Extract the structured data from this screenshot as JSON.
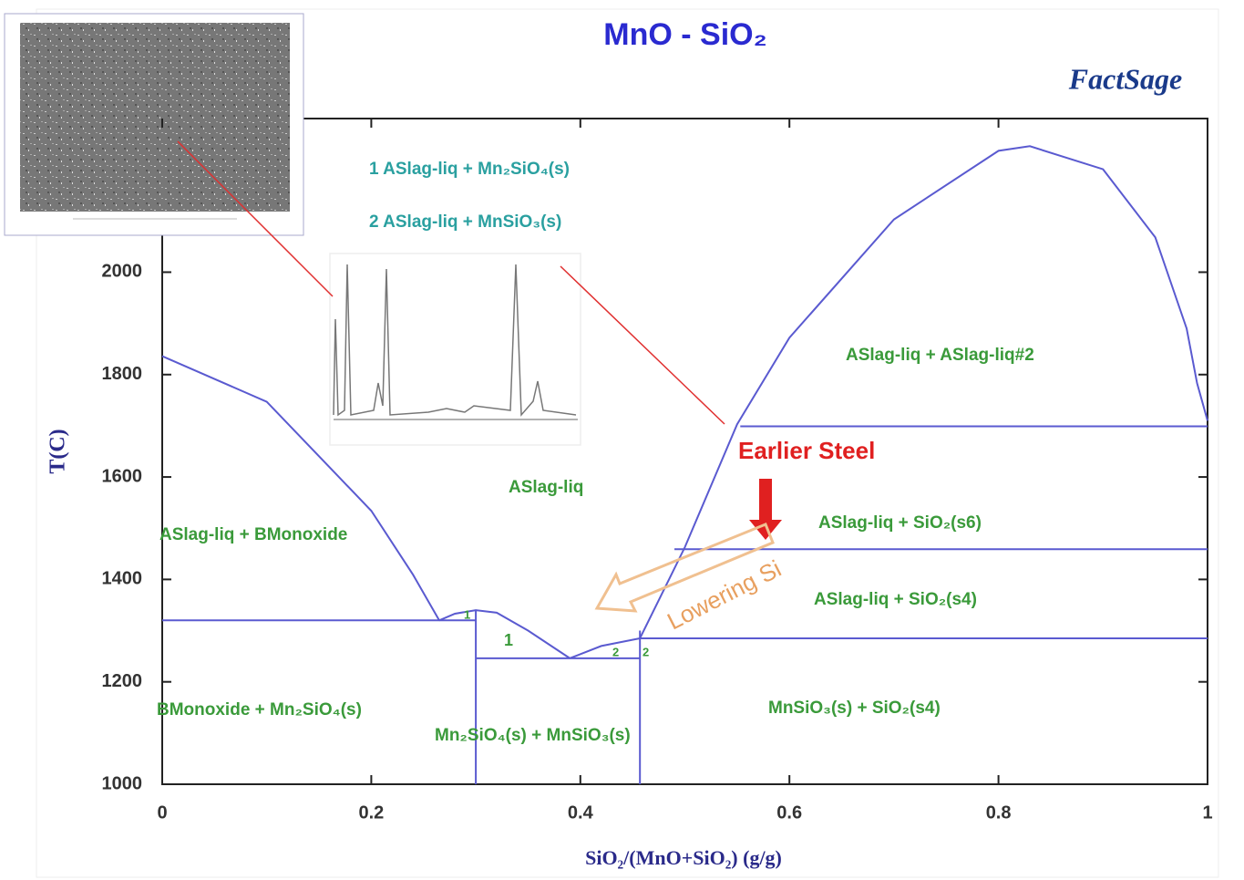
{
  "chart_data": {
    "type": "line",
    "title": "MnO - SiO₂",
    "logo": "FactSage",
    "x_label": "SiO₂/(MnO+SiO₂) (g/g)",
    "y_label": "T(C)",
    "xlim": [
      0,
      1
    ],
    "ylim": [
      1000,
      2300
    ],
    "xticks": [
      0,
      0.2,
      0.4,
      0.6,
      0.8,
      1
    ],
    "yticks": [
      1000,
      1200,
      1400,
      1600,
      1800,
      2000
    ],
    "series": [
      {
        "color": "#5a5ad0",
        "x": [
          0,
          0.1,
          0.2,
          0.24,
          0.265
        ],
        "values": [
          1836,
          1747,
          1534,
          1409,
          1320
        ]
      },
      {
        "color": "#5a5ad0",
        "x": [
          0.265,
          0.28,
          0.3,
          0.32,
          0.35,
          0.39
        ],
        "values": [
          1320,
          1333,
          1340,
          1335,
          1300,
          1246
        ]
      },
      {
        "color": "#5a5ad0",
        "x": [
          0.39,
          0.42,
          0.457,
          0.48,
          0.5,
          0.55,
          0.6,
          0.7,
          0.8,
          0.83,
          0.9,
          0.95,
          0.98,
          0.99,
          1
        ],
        "values": [
          1246,
          1270,
          1285,
          1380,
          1463,
          1703,
          1872,
          2103,
          2237,
          2246,
          2201,
          2068,
          1890,
          1783,
          1710
        ]
      },
      {
        "color": "#5a5ad0",
        "x": [
          0,
          0.3
        ],
        "values": [
          1320,
          1320
        ]
      },
      {
        "color": "#5a5ad0",
        "x": [
          0.3,
          0.457
        ],
        "values": [
          1246,
          1246
        ]
      },
      {
        "color": "#5a5ad0",
        "x": [
          0.457,
          1
        ],
        "values": [
          1285,
          1285
        ]
      },
      {
        "color": "#5a5ad0",
        "x": [
          0.49,
          1
        ],
        "values": [
          1459,
          1459
        ]
      },
      {
        "color": "#5a5ad0",
        "x": [
          0.553,
          1
        ],
        "values": [
          1699,
          1699
        ]
      },
      {
        "color": "#5a5ad0",
        "x": [
          0.3,
          0.3
        ],
        "values": [
          1000,
          1340
        ]
      },
      {
        "color": "#5a5ad0",
        "x": [
          0.457,
          0.457
        ],
        "values": [
          1000,
          1300
        ]
      }
    ],
    "phase_key": [
      "1  ASlag-liq + Mn₂SiO₄(s)",
      "2  ASlag-liq + MnSiO₃(s)"
    ],
    "regions": [
      "ASlag-liq + ASlag-liq#2",
      "ASlag-liq",
      "ASlag-liq + BMonoxide",
      "ASlag-liq + SiO₂(s6)",
      "ASlag-liq + SiO₂(s4)",
      "BMonoxide + Mn₂SiO₄(s)",
      "Mn₂SiO₄(s) + MnSiO₃(s)",
      "MnSiO₃(s) + SiO₂(s4)",
      "1",
      "2",
      "1",
      "2"
    ],
    "annotations": [
      "Earlier Steel",
      "Lowering Si"
    ]
  }
}
